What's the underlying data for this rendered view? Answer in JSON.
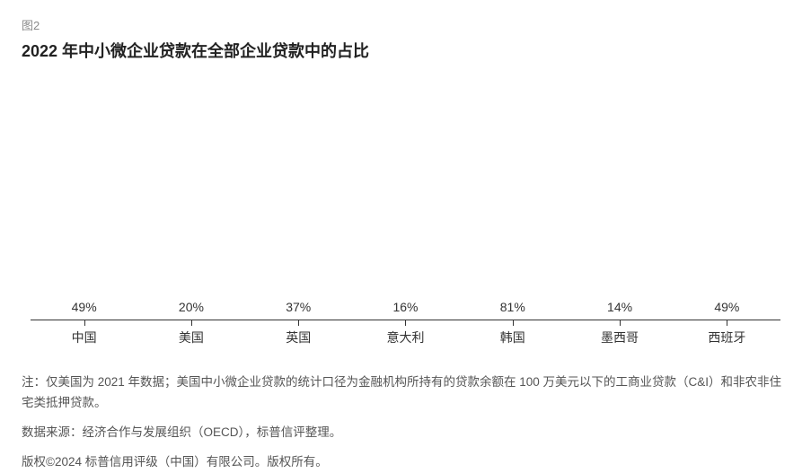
{
  "figure_label": "图2",
  "title": "2022 年中小微企业贷款在全部企业贷款中的占比",
  "chart": {
    "type": "bar",
    "ymax": 100,
    "bar_color": "#b7d7c5",
    "axis_color": "#333333",
    "background_color": "#ffffff",
    "categories": [
      "中国",
      "美国",
      "英国",
      "意大利",
      "韩国",
      "墨西哥",
      "西班牙"
    ],
    "values": [
      49,
      20,
      37,
      16,
      81,
      14,
      49
    ],
    "value_labels": [
      "49%",
      "20%",
      "37%",
      "16%",
      "81%",
      "14%",
      "49%"
    ],
    "label_fontsize": 14,
    "category_fontsize": 14,
    "bar_width_pct": 62
  },
  "notes": {
    "note1": "注：仅美国为 2021 年数据；美国中小微企业贷款的统计口径为金融机构所持有的贷款余额在 100 万美元以下的工商业贷款（C&I）和非农非住宅类抵押贷款。",
    "note2": "数据来源：经济合作与发展组织（OECD），标普信评整理。",
    "note3": "版权©2024 标普信用评级（中国）有限公司。版权所有。"
  }
}
